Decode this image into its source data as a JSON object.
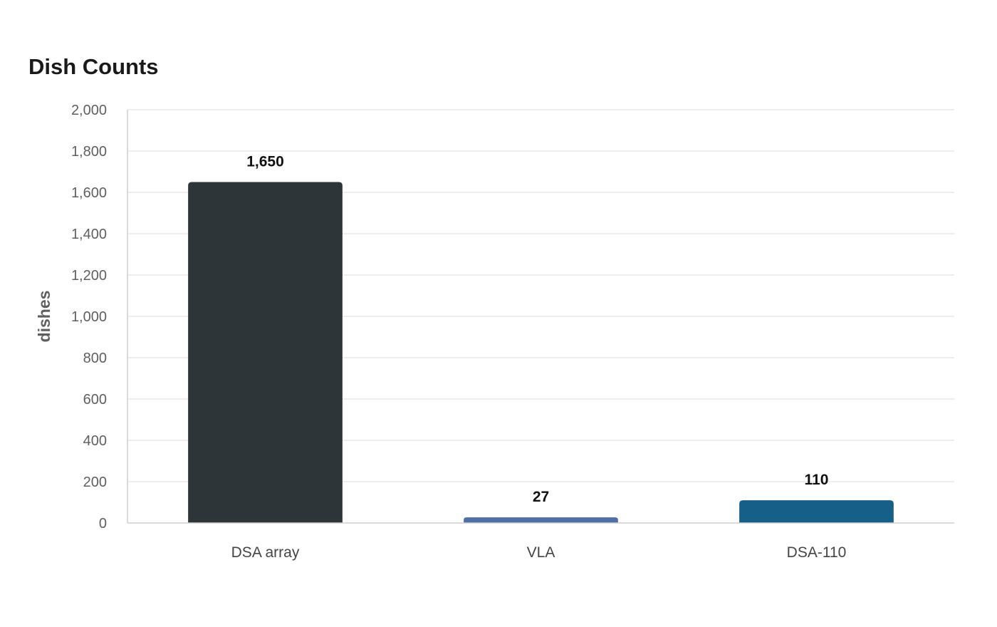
{
  "chart_data": {
    "type": "bar",
    "title": "Dish Counts",
    "xlabel": "",
    "ylabel": "dishes",
    "categories": [
      "DSA array",
      "VLA",
      "DSA-110"
    ],
    "values": [
      1650,
      27,
      110
    ],
    "value_labels": [
      "1,650",
      "27",
      "110"
    ],
    "colors": [
      "#2e3538",
      "#4e6ea4",
      "#155f88"
    ],
    "ylim": [
      0,
      2000
    ],
    "yticks": [
      0,
      200,
      400,
      600,
      800,
      1000,
      1200,
      1400,
      1600,
      1800,
      2000
    ],
    "ytick_labels": [
      "0",
      "200",
      "400",
      "600",
      "800",
      "1,000",
      "1,200",
      "1,400",
      "1,600",
      "1,800",
      "2,000"
    ],
    "grid": true,
    "legend": "none"
  }
}
